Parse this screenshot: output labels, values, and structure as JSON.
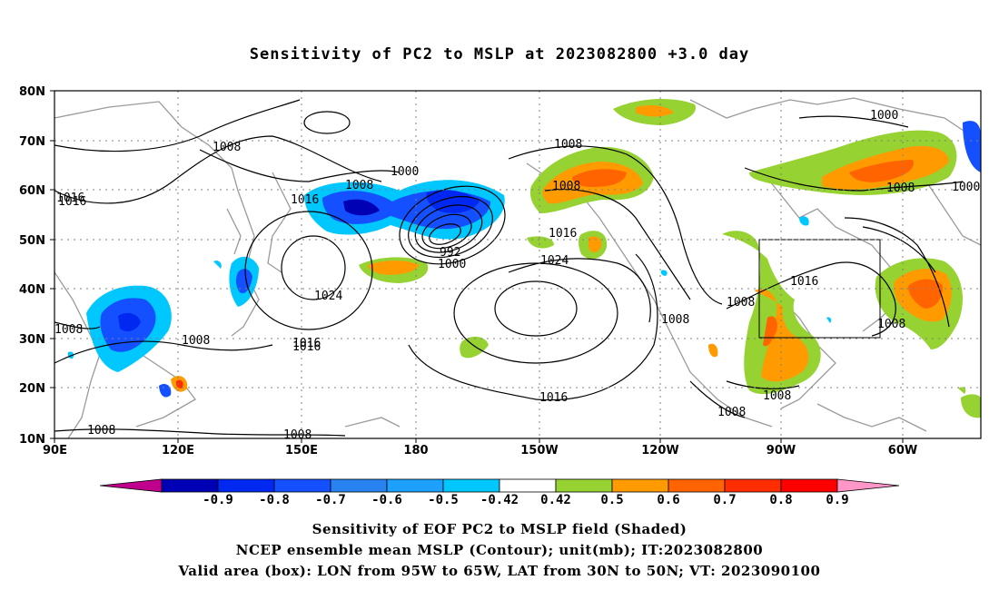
{
  "title": "Sensitivity of PC2 to MSLP at 2023082800 +3.0 day",
  "map": {
    "lat_labels": [
      "80N",
      "70N",
      "60N",
      "50N",
      "40N",
      "30N",
      "20N",
      "10N"
    ],
    "lon_labels": [
      "90E",
      "120E",
      "150E",
      "180",
      "150W",
      "120W",
      "90W",
      "60W"
    ],
    "valid_box": {
      "lon_from": "95W",
      "lon_to": "65W",
      "lat_from": "30N",
      "lat_to": "50N"
    },
    "contour_labels": [
      "1008",
      "1000",
      "1016",
      "1008",
      "1016",
      "992",
      "1000",
      "1024",
      "1008",
      "1016",
      "1008",
      "1016",
      "1024",
      "1008",
      "1008",
      "1008",
      "1016",
      "1008",
      "1000",
      "1008",
      "1000",
      "1016",
      "1008",
      "1008",
      "1008",
      "1016",
      "1016",
      "1008",
      "1008"
    ]
  },
  "colorbar": {
    "labels": [
      "-0.9",
      "-0.8",
      "-0.7",
      "-0.6",
      "-0.5",
      "-0.42",
      "0.42",
      "0.5",
      "0.6",
      "0.7",
      "0.8",
      "0.9"
    ],
    "colors": [
      "#c0008c",
      "#0000b4",
      "#0028f0",
      "#1450ff",
      "#2882f0",
      "#1ea0ff",
      "#00c8ff",
      "#ffffff",
      "#96d232",
      "#ff9b00",
      "#ff6400",
      "#ff2d00",
      "#ff0000",
      "#ff96c8"
    ]
  },
  "captions": [
    "Sensitivity of EOF PC2 to MSLP field (Shaded)",
    "NCEP ensemble mean MSLP (Contour); unit(mb); IT:2023082800",
    "Valid area (box): LON from 95W to 65W, LAT from 30N to 50N; VT: 2023090100"
  ]
}
